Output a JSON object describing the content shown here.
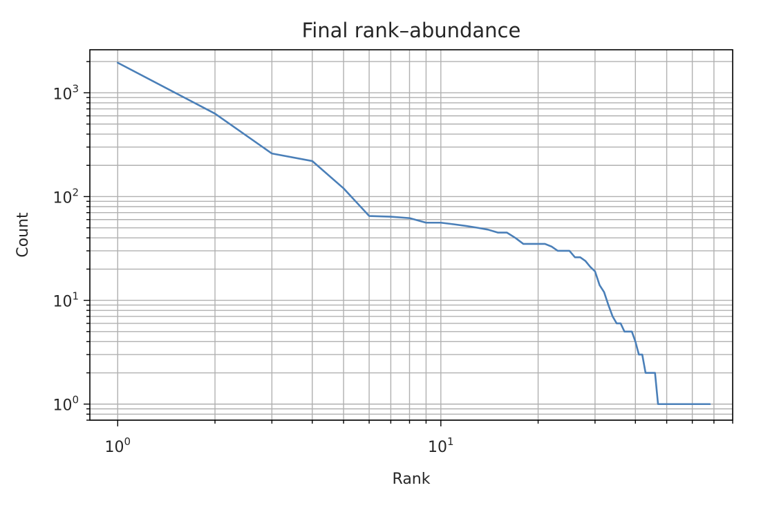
{
  "chart_data": {
    "type": "line",
    "title": "Final rank–abundance",
    "xlabel": "Rank",
    "ylabel": "Count",
    "xscale": "log",
    "yscale": "log",
    "xlim": [
      0.82,
      80
    ],
    "ylim": [
      0.7,
      2600
    ],
    "grid": "both major and minor",
    "line_color": "#4a7fb8",
    "x_ticks": [
      {
        "value": 1,
        "base": "10",
        "exp": "0"
      },
      {
        "value": 10,
        "base": "10",
        "exp": "1"
      }
    ],
    "y_ticks": [
      {
        "value": 1,
        "base": "10",
        "exp": "0"
      },
      {
        "value": 10,
        "base": "10",
        "exp": "1"
      },
      {
        "value": 100,
        "base": "10",
        "exp": "2"
      },
      {
        "value": 1000,
        "base": "10",
        "exp": "3"
      }
    ],
    "series": [
      {
        "x": [
          1,
          2,
          3,
          4,
          5,
          6,
          7,
          8,
          9,
          10,
          11,
          12,
          13,
          14,
          15,
          16,
          17,
          18,
          19,
          20,
          21,
          22,
          23,
          24,
          25,
          26,
          27,
          28,
          29,
          30,
          31,
          32,
          33,
          34,
          35,
          36,
          37,
          38,
          39,
          40,
          41,
          42,
          43,
          44,
          45,
          46,
          47,
          48,
          49,
          50,
          51,
          52,
          53,
          54,
          55,
          56,
          57,
          58,
          59,
          60,
          61,
          62,
          63,
          64,
          65,
          66,
          67,
          68
        ],
        "y": [
          1950,
          630,
          260,
          220,
          120,
          65,
          64,
          62,
          56,
          56,
          54,
          52,
          50,
          48,
          45,
          45,
          40,
          35,
          35,
          35,
          35,
          33,
          30,
          30,
          30,
          26,
          26,
          24,
          21,
          19,
          14,
          12,
          9,
          7,
          6,
          6,
          5,
          5,
          5,
          4,
          3,
          3,
          2,
          2,
          2,
          2,
          1,
          1,
          1,
          1,
          1,
          1,
          1,
          1,
          1,
          1,
          1,
          1,
          1,
          1,
          1,
          1,
          1,
          1,
          1,
          1,
          1,
          1
        ]
      }
    ]
  }
}
